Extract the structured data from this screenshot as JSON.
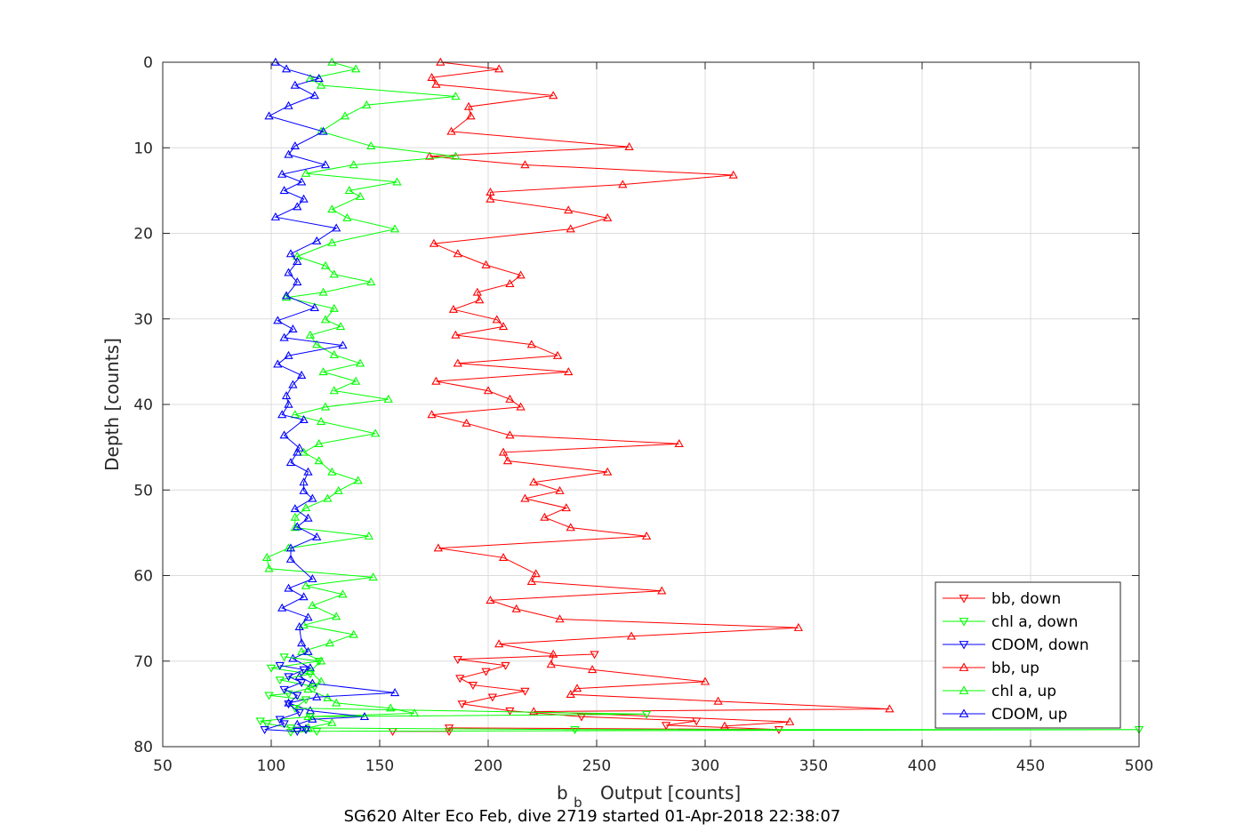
{
  "chart_data": {
    "type": "line",
    "xlabel_main": "b",
    "xlabel_sub": "b",
    "xlabel_rest": "Output [counts]",
    "ylabel": "Depth [counts]",
    "caption": "SG620 Alter Eco Feb, dive 2719 started 01-Apr-2018 22:38:07",
    "xlim": [
      50,
      500
    ],
    "ylim": [
      0,
      80
    ],
    "y_reversed": true,
    "grid": true,
    "legend_placement": "bottom-right",
    "x_ticks": [
      "50",
      "100",
      "150",
      "200",
      "250",
      "300",
      "350",
      "400",
      "450",
      "500"
    ],
    "y_ticks": [
      "0",
      "10",
      "20",
      "30",
      "40",
      "50",
      "60",
      "70",
      "80"
    ],
    "colors": {
      "red": "#ff0000",
      "green": "#00ff00",
      "blue": "#0000ff",
      "dark_red": "#c00000",
      "dark_green": "#00b000",
      "dark_blue": "#0000a0"
    },
    "series": [
      {
        "name": "bb, down",
        "color": "#ff0000",
        "marker": "down",
        "points": [
          [
            249,
            69.2
          ],
          [
            186,
            69.8
          ],
          [
            208,
            70.5
          ],
          [
            199,
            71.2
          ],
          [
            187,
            72
          ],
          [
            193,
            72.8
          ],
          [
            217,
            73.5
          ],
          [
            202,
            74.2
          ],
          [
            188,
            75
          ],
          [
            210,
            75.8
          ],
          [
            243,
            76.5
          ],
          [
            296,
            77
          ],
          [
            282,
            77.5
          ],
          [
            334,
            78
          ],
          [
            182,
            77.8
          ],
          [
            182,
            78.2
          ],
          [
            156,
            78.2
          ]
        ]
      },
      {
        "name": "chl a, down",
        "color": "#00ff00",
        "marker": "down",
        "points": [
          [
            106,
            69.5
          ],
          [
            122,
            70
          ],
          [
            100,
            70.8
          ],
          [
            118,
            71.5
          ],
          [
            104,
            72.2
          ],
          [
            120,
            73
          ],
          [
            108,
            73.8
          ],
          [
            99,
            74
          ],
          [
            116,
            74.5
          ],
          [
            111,
            75.5
          ],
          [
            273,
            76.2
          ],
          [
            118,
            76.5
          ],
          [
            95,
            77
          ],
          [
            98,
            77.3
          ],
          [
            109,
            77.8
          ],
          [
            240,
            78
          ],
          [
            500,
            78
          ],
          [
            121,
            78.2
          ],
          [
            109,
            78.3
          ]
        ]
      },
      {
        "name": "CDOM, down",
        "color": "#0000ff",
        "marker": "down",
        "points": [
          [
            104,
            70.5
          ],
          [
            115,
            71
          ],
          [
            108,
            71.8
          ],
          [
            114,
            72.5
          ],
          [
            106,
            73.3
          ],
          [
            112,
            74
          ],
          [
            108,
            75
          ],
          [
            113,
            76
          ],
          [
            104,
            76.8
          ],
          [
            106,
            77.3
          ],
          [
            97,
            78
          ],
          [
            112,
            78.2
          ],
          [
            116,
            78
          ]
        ]
      },
      {
        "name": "bb, up",
        "color": "#ff0000",
        "marker": "up",
        "points": [
          [
            178,
            0
          ],
          [
            205,
            0.8
          ],
          [
            174,
            1.8
          ],
          [
            176,
            2.6
          ],
          [
            230,
            3.9
          ],
          [
            191,
            5.2
          ],
          [
            192,
            6.3
          ],
          [
            183,
            8.1
          ],
          [
            265,
            9.9
          ],
          [
            173,
            11
          ],
          [
            217,
            12
          ],
          [
            313,
            13.2
          ],
          [
            262,
            14.3
          ],
          [
            201,
            15.2
          ],
          [
            201,
            16
          ],
          [
            237,
            17.3
          ],
          [
            255,
            18.2
          ],
          [
            238,
            19.5
          ],
          [
            175,
            21.2
          ],
          [
            186,
            22.4
          ],
          [
            199,
            23.7
          ],
          [
            215,
            24.9
          ],
          [
            210,
            25.9
          ],
          [
            195,
            26.9
          ],
          [
            196,
            27.8
          ],
          [
            184,
            28.9
          ],
          [
            204,
            30.1
          ],
          [
            207,
            30.9
          ],
          [
            185,
            31.9
          ],
          [
            220,
            33
          ],
          [
            232,
            34.3
          ],
          [
            186,
            35.2
          ],
          [
            237,
            36.2
          ],
          [
            176,
            37.3
          ],
          [
            200,
            38.4
          ],
          [
            210,
            39.4
          ],
          [
            215,
            40.3
          ],
          [
            174,
            41.2
          ],
          [
            190,
            42.2
          ],
          [
            210,
            43.6
          ],
          [
            288,
            44.6
          ],
          [
            207,
            45.6
          ],
          [
            209,
            46.6
          ],
          [
            255,
            47.9
          ],
          [
            221,
            49.1
          ],
          [
            233,
            50.1
          ],
          [
            217,
            51
          ],
          [
            236,
            52.1
          ],
          [
            226,
            53.2
          ],
          [
            238,
            54.4
          ],
          [
            273,
            55.4
          ],
          [
            177,
            56.8
          ],
          [
            207,
            57.9
          ],
          [
            222,
            59.8
          ],
          [
            220,
            60.7
          ],
          [
            280,
            61.8
          ],
          [
            201,
            62.9
          ],
          [
            213,
            63.9
          ],
          [
            233,
            65.1
          ],
          [
            343,
            66.1
          ],
          [
            266,
            67.1
          ],
          [
            205,
            68
          ],
          [
            230,
            69.2
          ],
          [
            229,
            70.4
          ],
          [
            248,
            71
          ],
          [
            300,
            72.4
          ],
          [
            241,
            73.2
          ],
          [
            238,
            73.9
          ],
          [
            306,
            74.7
          ],
          [
            385,
            75.6
          ],
          [
            221,
            75.9
          ],
          [
            339,
            77.1
          ],
          [
            309,
            77.6
          ]
        ]
      },
      {
        "name": "chl a, up",
        "color": "#00ff00",
        "marker": "up",
        "points": [
          [
            128,
            0
          ],
          [
            139,
            0.8
          ],
          [
            118,
            1.9
          ],
          [
            123,
            2.7
          ],
          [
            185,
            4
          ],
          [
            144,
            5
          ],
          [
            134,
            6.3
          ],
          [
            123,
            8.1
          ],
          [
            146,
            9.8
          ],
          [
            185,
            11
          ],
          [
            138,
            12
          ],
          [
            116,
            13
          ],
          [
            158,
            14
          ],
          [
            136,
            15
          ],
          [
            141,
            15.7
          ],
          [
            128,
            17.2
          ],
          [
            135,
            18.2
          ],
          [
            157,
            19.5
          ],
          [
            128,
            21.1
          ],
          [
            112,
            22.7
          ],
          [
            125,
            23.8
          ],
          [
            129,
            24.8
          ],
          [
            146,
            25.7
          ],
          [
            124,
            26.9
          ],
          [
            107,
            27.5
          ],
          [
            129,
            28.8
          ],
          [
            125,
            30.1
          ],
          [
            132,
            30.9
          ],
          [
            118,
            31.9
          ],
          [
            121,
            33
          ],
          [
            129,
            34.2
          ],
          [
            141,
            35.2
          ],
          [
            124,
            36.2
          ],
          [
            139,
            37.3
          ],
          [
            129,
            38.4
          ],
          [
            154,
            39.4
          ],
          [
            125,
            40.3
          ],
          [
            111,
            41.2
          ],
          [
            123,
            42
          ],
          [
            148,
            43.4
          ],
          [
            122,
            44.6
          ],
          [
            115,
            45.6
          ],
          [
            122,
            46.6
          ],
          [
            128,
            47.9
          ],
          [
            140,
            48.9
          ],
          [
            131,
            50.1
          ],
          [
            126,
            51
          ],
          [
            116,
            52.1
          ],
          [
            111,
            53.2
          ],
          [
            111,
            54.4
          ],
          [
            145,
            55.4
          ],
          [
            108,
            56.8
          ],
          [
            98,
            57.9
          ],
          [
            99,
            59.2
          ],
          [
            147,
            60.2
          ],
          [
            116,
            61.2
          ],
          [
            133,
            62.2
          ],
          [
            119,
            63.5
          ],
          [
            130,
            64.8
          ],
          [
            115,
            65.8
          ],
          [
            138,
            66.9
          ],
          [
            127,
            67.9
          ],
          [
            114,
            68.9
          ],
          [
            123,
            70
          ],
          [
            118,
            71.2
          ],
          [
            123,
            72.4
          ],
          [
            117,
            73.3
          ],
          [
            126,
            74.3
          ],
          [
            130,
            74.9
          ],
          [
            155,
            75.5
          ],
          [
            166,
            76.1
          ],
          [
            117,
            76.5
          ],
          [
            128,
            77.2
          ],
          [
            117,
            77.8
          ]
        ]
      },
      {
        "name": "CDOM, up",
        "color": "#0000ff",
        "marker": "up",
        "points": [
          [
            102,
            0
          ],
          [
            107,
            0.8
          ],
          [
            122,
            1.9
          ],
          [
            111,
            2.7
          ],
          [
            120,
            3.9
          ],
          [
            108,
            5.1
          ],
          [
            99,
            6.3
          ],
          [
            124,
            8.1
          ],
          [
            111,
            9.8
          ],
          [
            108,
            10.8
          ],
          [
            125,
            12
          ],
          [
            105,
            13.1
          ],
          [
            114,
            14
          ],
          [
            106,
            15
          ],
          [
            115,
            16
          ],
          [
            112,
            16.9
          ],
          [
            102,
            18.1
          ],
          [
            130,
            19.4
          ],
          [
            121,
            20.9
          ],
          [
            109,
            22.4
          ],
          [
            112,
            23.3
          ],
          [
            108,
            24.6
          ],
          [
            112,
            25.7
          ],
          [
            107,
            27.3
          ],
          [
            120,
            28.7
          ],
          [
            103,
            30.2
          ],
          [
            110,
            31.2
          ],
          [
            106,
            32.2
          ],
          [
            133,
            33.1
          ],
          [
            108,
            34.3
          ],
          [
            103,
            35.3
          ],
          [
            114,
            36.6
          ],
          [
            110,
            37.7
          ],
          [
            107,
            39
          ],
          [
            108,
            40
          ],
          [
            105,
            41.2
          ],
          [
            115,
            41.8
          ],
          [
            106,
            43.6
          ],
          [
            113,
            45.1
          ],
          [
            112,
            45.6
          ],
          [
            109,
            46.8
          ],
          [
            117,
            47.9
          ],
          [
            115,
            49.1
          ],
          [
            115,
            50.1
          ],
          [
            119,
            51
          ],
          [
            111,
            52.2
          ],
          [
            117,
            53.3
          ],
          [
            112,
            54.3
          ],
          [
            121,
            55.5
          ],
          [
            109,
            56.8
          ],
          [
            109,
            58.1
          ],
          [
            119,
            60.4
          ],
          [
            108,
            61.5
          ],
          [
            115,
            62.5
          ],
          [
            105,
            63.8
          ],
          [
            117,
            64.9
          ],
          [
            113,
            66
          ],
          [
            114,
            67.9
          ],
          [
            117,
            68.9
          ],
          [
            110,
            69.7
          ],
          [
            118,
            70.8
          ],
          [
            113,
            71.8
          ],
          [
            119,
            72.6
          ],
          [
            157,
            73.7
          ],
          [
            121,
            74.2
          ],
          [
            108,
            74.9
          ],
          [
            118,
            75.8
          ],
          [
            143,
            76.5
          ],
          [
            119,
            76.8
          ],
          [
            112,
            77.4
          ],
          [
            116,
            77.9
          ]
        ]
      }
    ]
  }
}
